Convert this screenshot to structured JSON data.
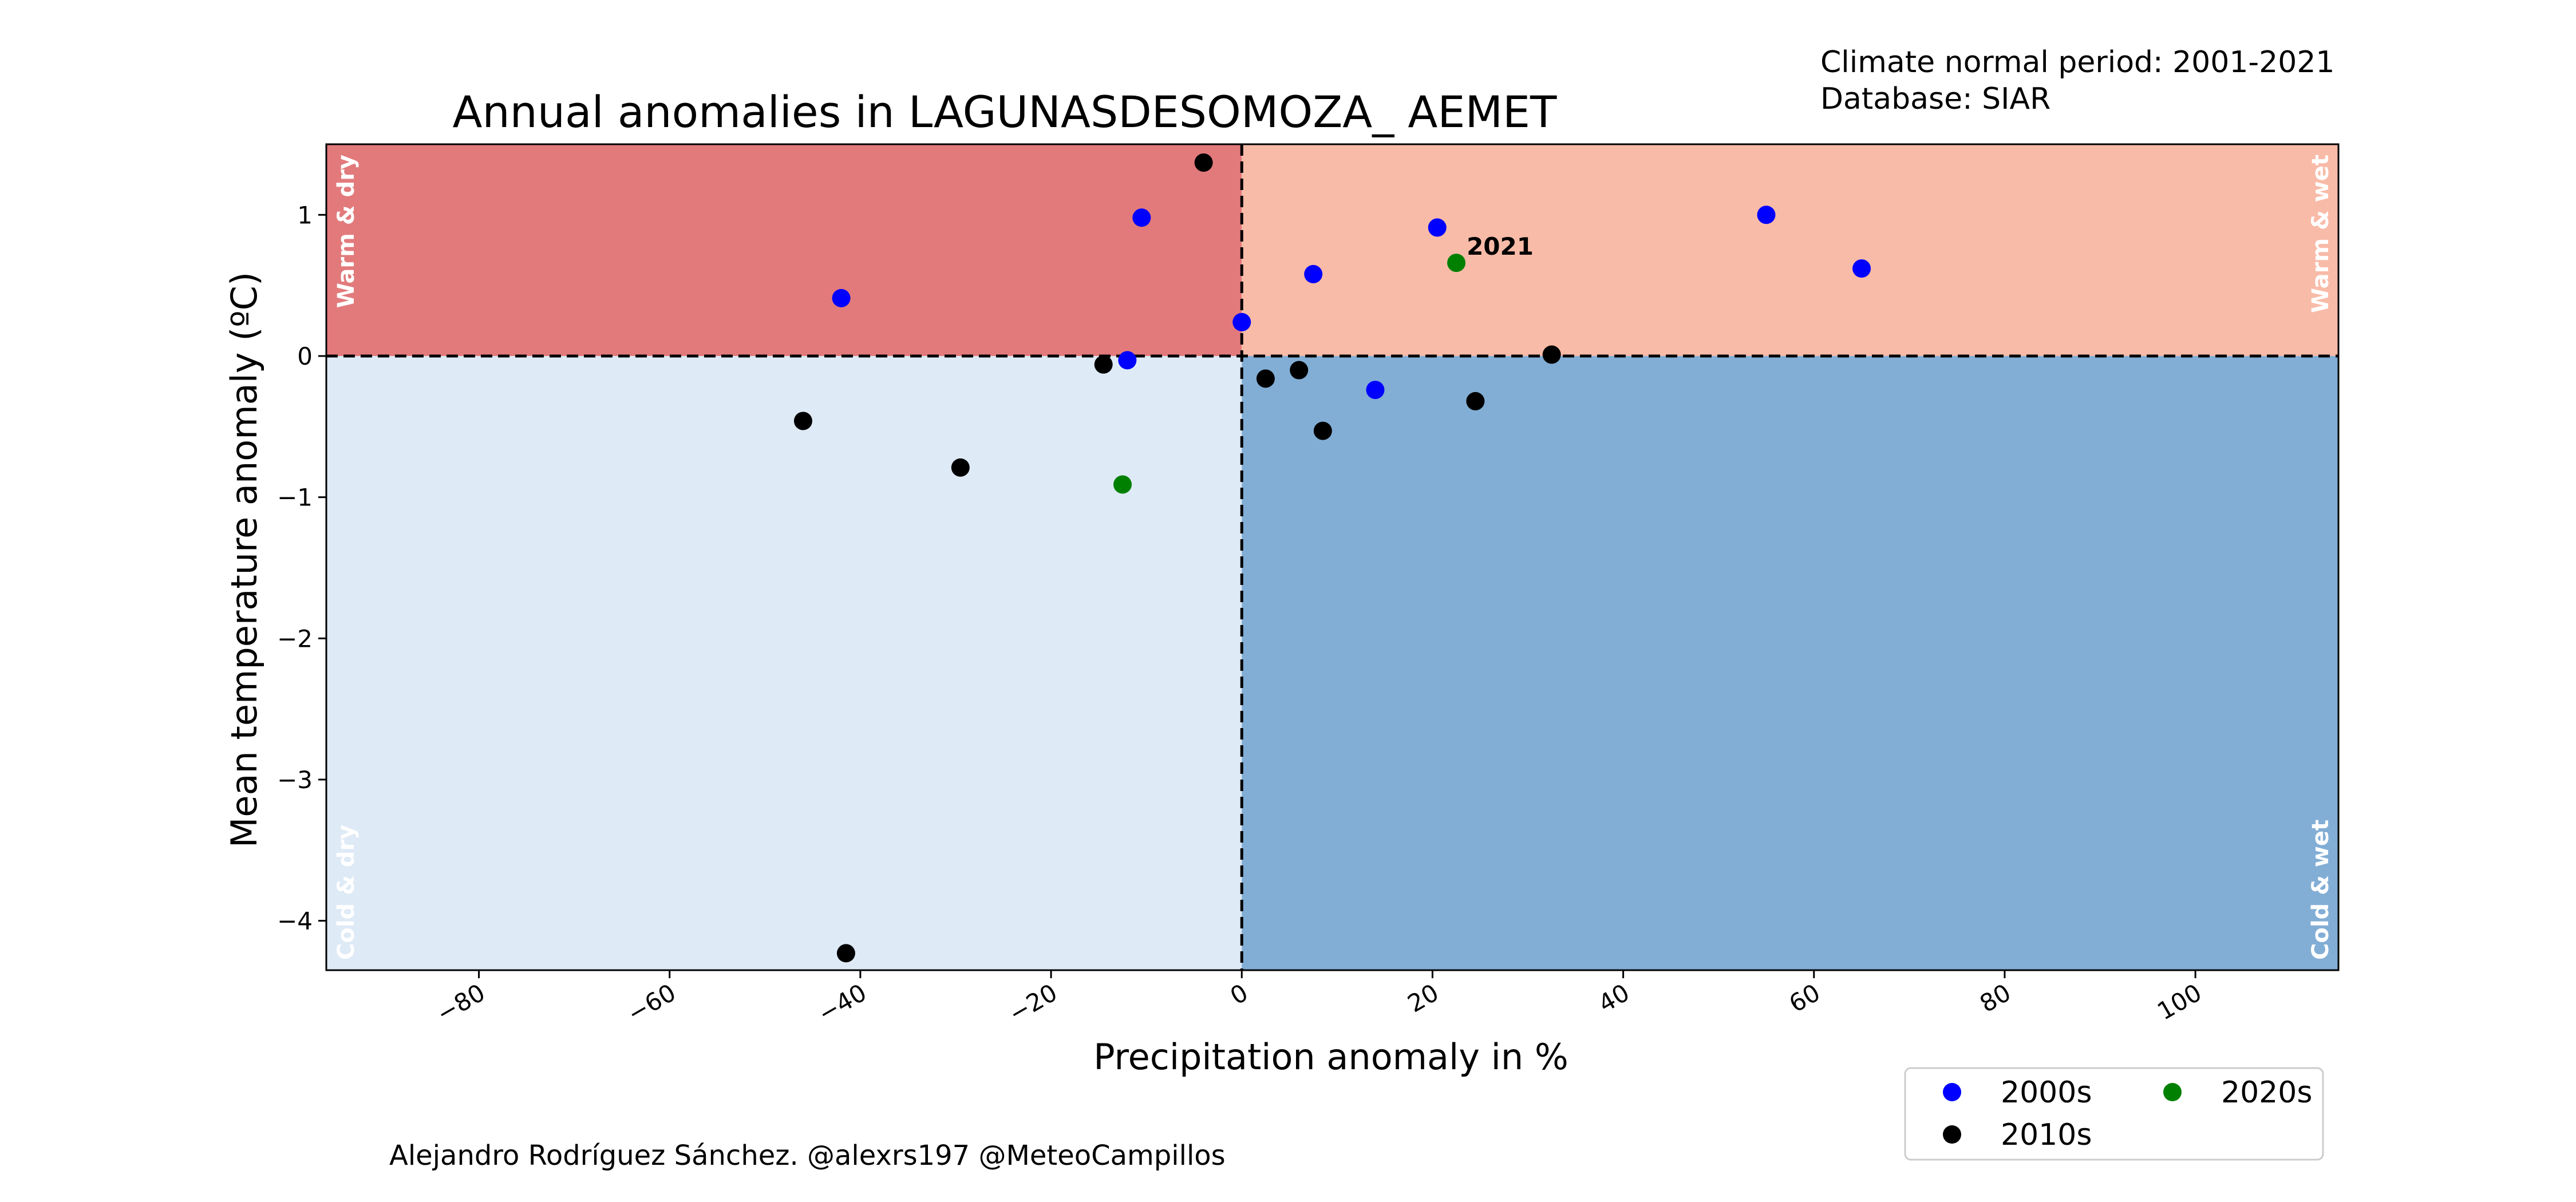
{
  "chart_data": {
    "type": "scatter",
    "title": "Annual anomalies in LAGUNASDESOMOZA_ AEMET",
    "meta_lines": [
      "Climate normal period: 2001-2021",
      "Database: SIAR"
    ],
    "xlabel": "Precipitation anomaly in %",
    "ylabel": "Mean temperature anomaly (ºC)",
    "xlim": [
      -96,
      115
    ],
    "ylim": [
      -4.35,
      1.5
    ],
    "xticks": [
      -80,
      -60,
      -40,
      -20,
      0,
      20,
      40,
      60,
      80,
      100
    ],
    "xtick_labels": [
      "−80",
      "−60",
      "−40",
      "−20",
      "0",
      "20",
      "40",
      "60",
      "80",
      "100"
    ],
    "yticks": [
      1,
      0,
      -1,
      -2,
      -3,
      -4
    ],
    "ytick_labels": [
      "1",
      "0",
      "−1",
      "−2",
      "−3",
      "−4"
    ],
    "quadrants": {
      "warm_dry": {
        "label": "Warm & dry",
        "color": "#e27a7c"
      },
      "warm_wet": {
        "label": "Warm & wet",
        "color": "#f8bba8"
      },
      "cold_dry": {
        "label": "Cold & dry",
        "color": "#deeaf6"
      },
      "cold_wet": {
        "label": "Cold & wet",
        "color": "#82aed5"
      }
    },
    "series": [
      {
        "name": "2000s",
        "color": "#0000ff",
        "points": [
          {
            "x": -42,
            "y": 0.41
          },
          {
            "x": -10.5,
            "y": 0.98
          },
          {
            "x": -12,
            "y": -0.03
          },
          {
            "x": 0,
            "y": 0.24
          },
          {
            "x": 7.5,
            "y": 0.58
          },
          {
            "x": 14,
            "y": -0.24
          },
          {
            "x": 20.5,
            "y": 0.91
          },
          {
            "x": 55,
            "y": 1.0
          },
          {
            "x": 65,
            "y": 0.62
          }
        ]
      },
      {
        "name": "2010s",
        "color": "#000000",
        "points": [
          {
            "x": -4,
            "y": 1.37
          },
          {
            "x": -14.5,
            "y": -0.06
          },
          {
            "x": -46,
            "y": -0.46
          },
          {
            "x": -29.5,
            "y": -0.79
          },
          {
            "x": -41.5,
            "y": -4.23
          },
          {
            "x": 2.5,
            "y": -0.16
          },
          {
            "x": 6,
            "y": -0.1
          },
          {
            "x": 8.5,
            "y": -0.53
          },
          {
            "x": 24.5,
            "y": -0.32
          },
          {
            "x": 32.5,
            "y": 0.01
          }
        ]
      },
      {
        "name": "2020s",
        "color": "#008000",
        "points": [
          {
            "x": 22.5,
            "y": 0.66,
            "label": "2021"
          },
          {
            "x": -12.5,
            "y": -0.91
          }
        ]
      }
    ],
    "credit": "Alejandro Rodríguez Sánchez. @alexrs197 @MeteoCampillos",
    "legend_placement": "bottom-right, outside plot"
  }
}
